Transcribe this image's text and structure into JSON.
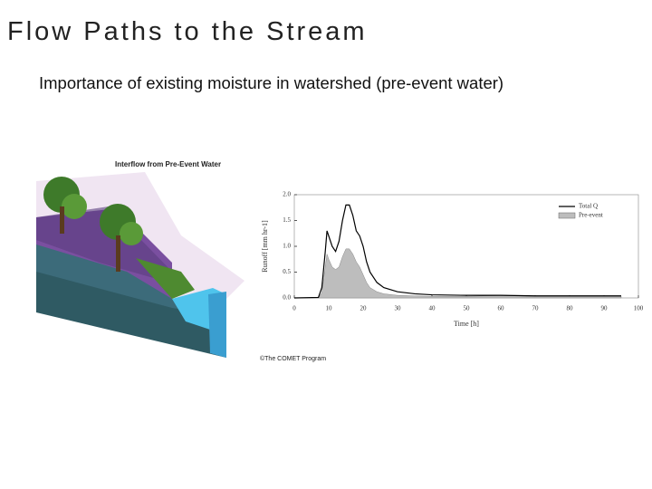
{
  "slide": {
    "title": "Flow Paths to the Stream",
    "subtitle": "Importance of existing moisture in watershed (pre-event water)"
  },
  "figure": {
    "title": "Interflow from Pre-Event Water",
    "credit": "©The COMET Program"
  },
  "chart_data": {
    "type": "line",
    "x_label": "Time [h]",
    "y_label": "Runoff [mm hr-1]",
    "x": [
      0,
      7,
      8,
      9,
      9.5,
      10,
      11,
      12,
      13,
      14,
      15,
      16,
      17,
      18,
      19,
      20,
      21,
      22,
      24,
      26,
      30,
      35,
      40,
      50,
      60,
      70,
      80,
      95
    ],
    "series": [
      {
        "name": "Total Q",
        "color": "#000000",
        "values": [
          0,
          0.01,
          0.2,
          0.9,
          1.3,
          1.2,
          1.0,
          0.9,
          1.1,
          1.5,
          1.8,
          1.8,
          1.6,
          1.3,
          1.2,
          1.0,
          0.7,
          0.5,
          0.3,
          0.2,
          0.12,
          0.08,
          0.06,
          0.05,
          0.05,
          0.04,
          0.04,
          0.04
        ]
      },
      {
        "name": "Pre-event",
        "color": "#bdbdbd",
        "area": true,
        "values": [
          0,
          0,
          0.1,
          0.6,
          0.85,
          0.75,
          0.6,
          0.55,
          0.6,
          0.8,
          0.95,
          0.95,
          0.85,
          0.7,
          0.6,
          0.45,
          0.3,
          0.2,
          0.12,
          0.08,
          0.05,
          0.04,
          0.03,
          0.03,
          0.05,
          0.03,
          0.03,
          0.03
        ]
      }
    ],
    "xlim": [
      0,
      100
    ],
    "xticks": [
      0,
      10,
      20,
      30,
      40,
      50,
      60,
      70,
      80,
      90,
      100
    ],
    "ylim": [
      0,
      2
    ],
    "yticks": [
      {
        "value": 0,
        "label": "0.0"
      },
      0.5,
      {
        "value": 1,
        "label": "1.0"
      },
      1.5,
      {
        "value": 2,
        "label": "2.0"
      }
    ],
    "legend": "upper right"
  }
}
